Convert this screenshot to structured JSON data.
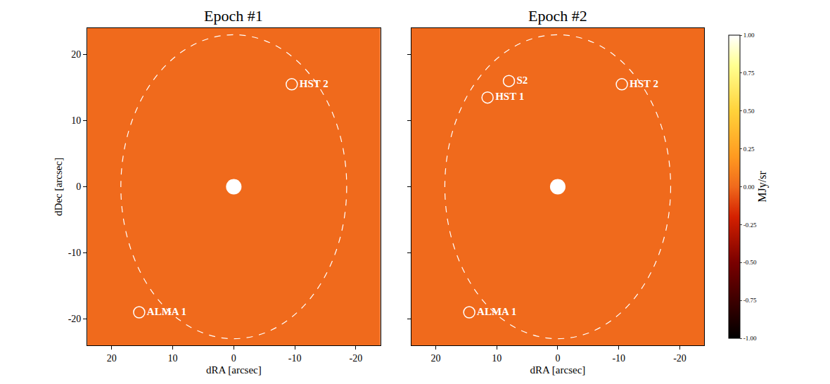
{
  "chart_data": [
    {
      "type": "heatmap",
      "title": "Epoch #1",
      "xlabel": "dRA [arcsec]",
      "ylabel": "dDec [arcsec]",
      "xlim": [
        24,
        -24
      ],
      "ylim": [
        -24,
        24
      ],
      "xticks": [
        20,
        10,
        0,
        -10,
        -20
      ],
      "yticks": [
        -20,
        -10,
        0,
        10,
        20
      ],
      "image": {
        "x_edges": [
          24,
          -24
        ],
        "y_edges": [
          -24,
          24
        ],
        "cells": [
          [
            0
          ]
        ]
      },
      "ellipse": {
        "center": [
          0,
          0
        ],
        "rx": 18.5,
        "ry": 23
      },
      "sources": [
        {
          "label": "HST 2",
          "x": -9.5,
          "y": 15.5
        },
        {
          "label": "ALMA 1",
          "x": 15.5,
          "y": -19
        }
      ]
    },
    {
      "type": "heatmap",
      "title": "Epoch #2",
      "xlabel": "dRA [arcsec]",
      "xlim": [
        24,
        -24
      ],
      "ylim": [
        -24,
        24
      ],
      "xticks": [
        20,
        10,
        0,
        -10,
        -20
      ],
      "yticks": [
        -20,
        -10,
        0,
        10,
        20
      ],
      "tick_labels": "x",
      "image": {
        "x_edges": [
          24,
          -24
        ],
        "y_edges": [
          -24,
          24
        ],
        "cells": [
          [
            0
          ]
        ]
      },
      "ellipse": {
        "center": [
          0,
          0
        ],
        "rx": 18.5,
        "ry": 23
      },
      "sources": [
        {
          "label": "S2",
          "x": 8,
          "y": 16
        },
        {
          "label": "HST 1",
          "x": 11.5,
          "y": 13.5
        },
        {
          "label": "HST 2",
          "x": -10.5,
          "y": 15.5
        },
        {
          "label": "ALMA 1",
          "x": 14.5,
          "y": -19
        }
      ],
      "colorbar": {
        "label": "MJy/sr",
        "range": [
          -1,
          1
        ],
        "ticks": [
          {
            "value": -1,
            "label": "-1.00"
          },
          {
            "value": -0.75,
            "label": "-0.75"
          },
          {
            "value": -0.5,
            "label": "-0.50"
          },
          {
            "value": -0.25,
            "label": "-0.25"
          },
          {
            "value": 0,
            "label": "0.00"
          },
          {
            "value": 0.25,
            "label": "0.25"
          },
          {
            "value": 0.5,
            "label": "0.50"
          },
          {
            "value": 0.75,
            "label": "0.75"
          },
          {
            "value": 1,
            "label": "1.00"
          }
        ]
      }
    }
  ]
}
